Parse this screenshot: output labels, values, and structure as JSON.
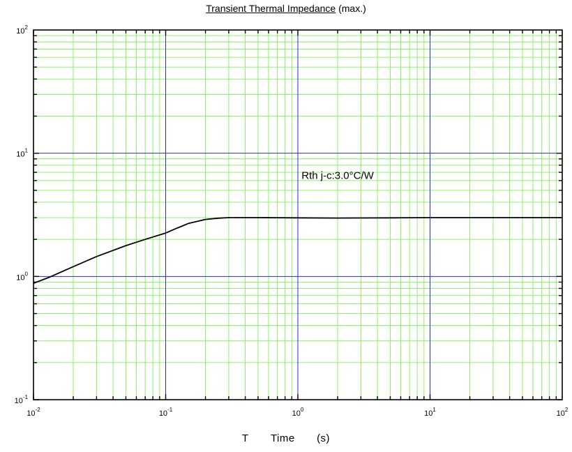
{
  "chart_data": {
    "type": "line",
    "title": "Transient Thermal Impedance",
    "title_suffix": "(max.)",
    "xlabel": {
      "symbol": "T",
      "name": "Time",
      "unit": "(s)"
    },
    "ylabel": "",
    "xscale": "log",
    "yscale": "log",
    "xlim": [
      0.01,
      100
    ],
    "ylim": [
      0.1,
      100
    ],
    "x_tick_labels": [
      {
        "base": "10",
        "exp": "-2"
      },
      {
        "base": "10",
        "exp": "-1"
      },
      {
        "base": "10",
        "exp": "0"
      },
      {
        "base": "10",
        "exp": "1"
      },
      {
        "base": "10",
        "exp": "2"
      }
    ],
    "y_tick_labels": [
      {
        "base": "10",
        "exp": "-1"
      },
      {
        "base": "10",
        "exp": "0"
      },
      {
        "base": "10",
        "exp": "1"
      },
      {
        "base": "10",
        "exp": "2"
      }
    ],
    "grid": true,
    "grid_colors": {
      "major": "#2a2ad0",
      "minor": "#7ff05a"
    },
    "series": [
      {
        "color": "#000000",
        "x": [
          0.01,
          0.013,
          0.02,
          0.03,
          0.05,
          0.07,
          0.1,
          0.12,
          0.15,
          0.2,
          0.25,
          0.3,
          0.5,
          1,
          2,
          5,
          10,
          20,
          50,
          100
        ],
        "y": [
          0.88,
          0.98,
          1.2,
          1.45,
          1.78,
          2.0,
          2.25,
          2.45,
          2.7,
          2.9,
          2.97,
          3.0,
          3.0,
          2.99,
          2.98,
          2.99,
          3.0,
          3.0,
          3.0,
          3.0
        ]
      }
    ],
    "annotations": [
      {
        "text": "Rth j-c:3.0°C/W",
        "x": 2,
        "y": 6.2
      }
    ]
  }
}
